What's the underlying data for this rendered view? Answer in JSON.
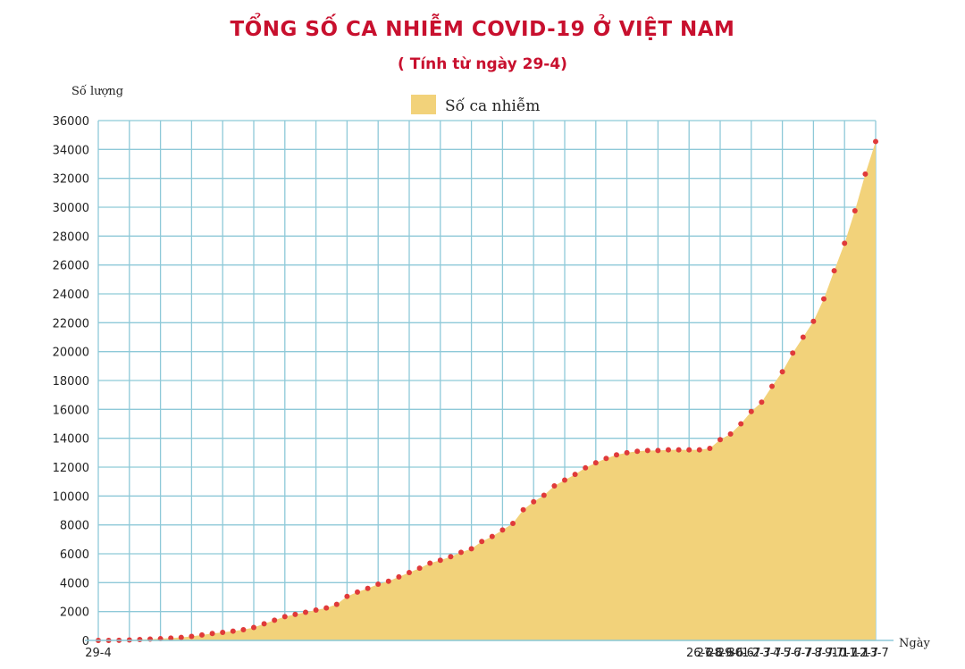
{
  "chart_data": {
    "type": "area",
    "title": "TỔNG SỐ CA NHIỄM COVID-19 Ở VIỆT NAM",
    "subtitle": "( Tính từ ngày 29-4)",
    "ylabel": "Số lượng",
    "xlabel": "Ngày",
    "ylim": [
      0,
      36000
    ],
    "yticks": [
      0,
      2000,
      4000,
      6000,
      8000,
      10000,
      12000,
      14000,
      16000,
      18000,
      20000,
      22000,
      24000,
      26000,
      28000,
      30000,
      32000,
      34000,
      36000
    ],
    "grid": true,
    "legend": {
      "position": "top-center",
      "label": "Số ca nhiễm"
    },
    "colors": {
      "fill": "#f2d27a",
      "point": "#e03a3a",
      "grid": "#8ec9d8",
      "title": "#c8102e"
    },
    "x_labels": [
      {
        "day": 0,
        "label": "29-4"
      },
      {
        "day": 58,
        "label": "26-6"
      },
      {
        "day": 59,
        "label": "27-6"
      },
      {
        "day": 60,
        "label": "28-6"
      },
      {
        "day": 61,
        "label": "29-6"
      },
      {
        "day": 62,
        "label": "30-6"
      },
      {
        "day": 63,
        "label": "1-7"
      },
      {
        "day": 64,
        "label": "2-7"
      },
      {
        "day": 65,
        "label": "3-7"
      },
      {
        "day": 66,
        "label": "4-7"
      },
      {
        "day": 67,
        "label": "5-7"
      },
      {
        "day": 68,
        "label": "6-7"
      },
      {
        "day": 69,
        "label": "7-7"
      },
      {
        "day": 70,
        "label": "8-7"
      },
      {
        "day": 71,
        "label": "9-7"
      },
      {
        "day": 72,
        "label": "10-7"
      },
      {
        "day": 73,
        "label": "11-7"
      },
      {
        "day": 74,
        "label": "12-7"
      },
      {
        "day": 75,
        "label": "13-7"
      }
    ],
    "series": [
      {
        "values": [
          0,
          2,
          10,
          30,
          60,
          90,
          120,
          160,
          210,
          280,
          380,
          480,
          560,
          640,
          740,
          900,
          1150,
          1400,
          1650,
          1800,
          1950,
          2100,
          2250,
          2500,
          3050,
          3350,
          3600,
          3900,
          4100,
          4400,
          4700,
          5000,
          5350,
          5550,
          5800,
          6100,
          6350,
          6850,
          7200,
          7650,
          8100,
          9050,
          9600,
          10050,
          10700,
          11100,
          11500,
          11950,
          12300,
          12600,
          12850,
          13000,
          13100,
          13150,
          13150,
          13200,
          13200,
          13200,
          13200,
          13300,
          13900,
          14300,
          15000,
          15850,
          16500,
          17600,
          18600,
          19900,
          21000,
          22100,
          23650,
          25600,
          27500,
          29750,
          32300,
          34550
        ]
      }
    ]
  }
}
